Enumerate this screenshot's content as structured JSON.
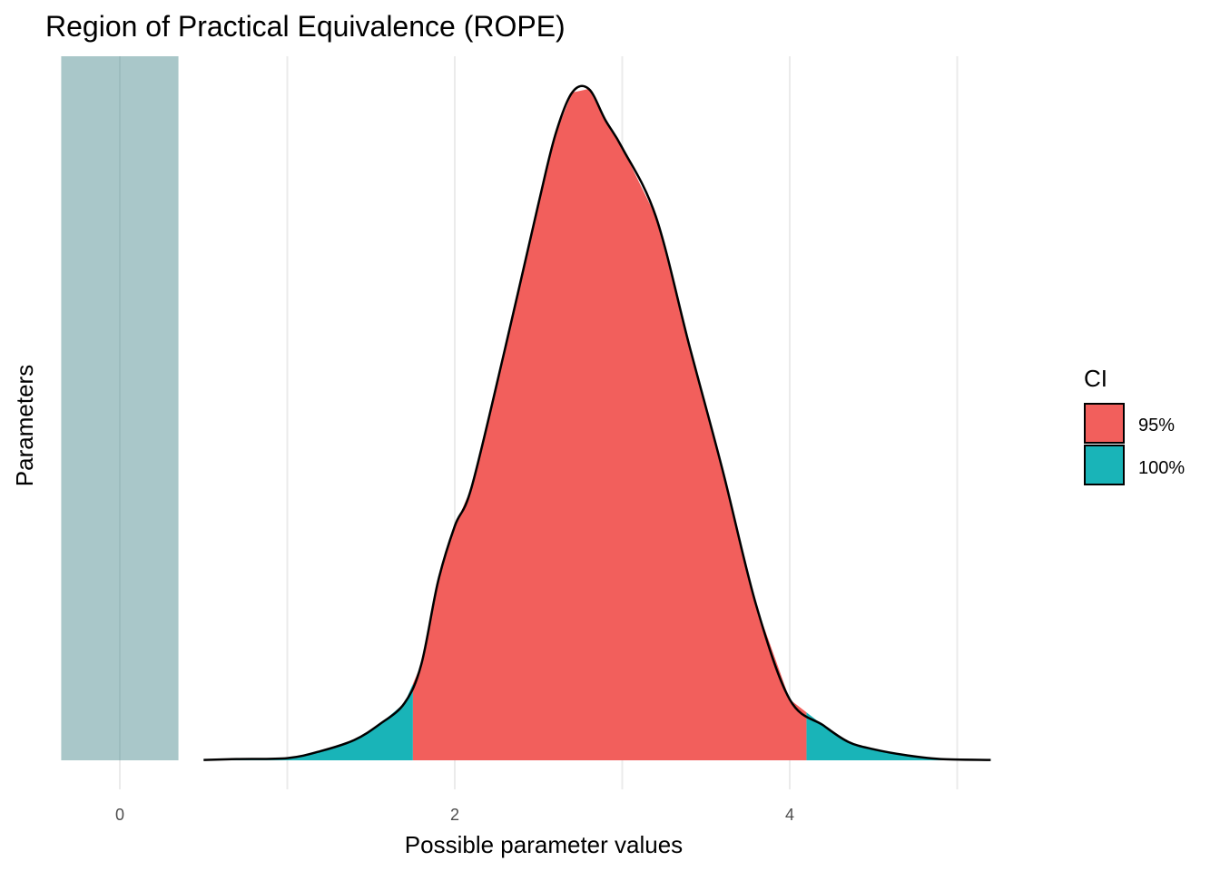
{
  "chart_data": {
    "type": "area",
    "title": "Region of Practical Equivalence (ROPE)",
    "xlabel": "Possible parameter values",
    "ylabel": "Parameters",
    "xlim": [
      -0.35,
      5.25
    ],
    "x_major_ticks": [
      0,
      2,
      4
    ],
    "x_minor_gridlines": [
      1,
      3,
      5
    ],
    "grid": true,
    "legend": {
      "title": "CI",
      "position": "right",
      "entries": [
        {
          "label": "95%",
          "color": "#f25f5c"
        },
        {
          "label": "100%",
          "color": "#19b4b8"
        }
      ]
    },
    "rope": {
      "range": [
        -0.35,
        0.35
      ],
      "center": 0,
      "color": "#a9c7c9"
    },
    "ci95": {
      "low": 1.75,
      "high": 4.1
    },
    "density": {
      "x": [
        0.5,
        0.7,
        1.0,
        1.2,
        1.4,
        1.55,
        1.7,
        1.8,
        1.9,
        2.0,
        2.1,
        2.3,
        2.5,
        2.6,
        2.7,
        2.8,
        2.9,
        3.0,
        3.2,
        3.4,
        3.6,
        3.8,
        4.0,
        4.2,
        4.35,
        4.5,
        4.7,
        4.9,
        5.2
      ],
      "y": [
        0.002,
        0.007,
        0.012,
        0.05,
        0.11,
        0.195,
        0.31,
        0.52,
        0.97,
        1.27,
        1.48,
        2.23,
        3.02,
        3.39,
        3.62,
        3.64,
        3.47,
        3.32,
        2.95,
        2.25,
        1.57,
        0.84,
        0.33,
        0.19,
        0.1,
        0.06,
        0.027,
        0.007,
        0.002
      ]
    }
  }
}
